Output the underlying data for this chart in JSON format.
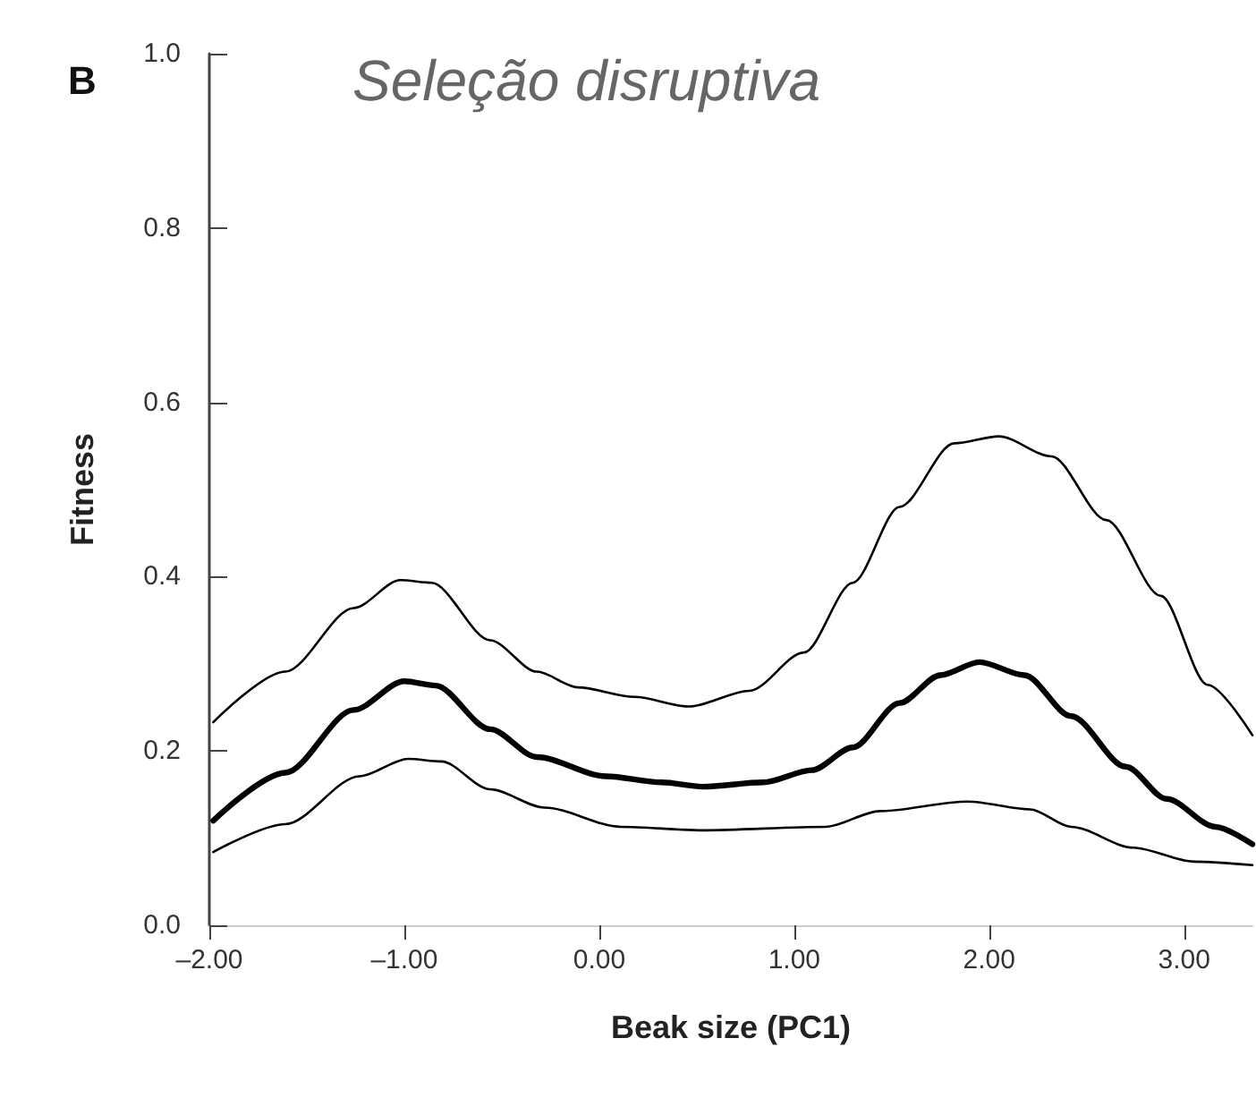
{
  "chart_data": {
    "type": "line",
    "title": "Seleção disruptiva",
    "xlabel": "Beak size (PC1)",
    "ylabel": "Fitness",
    "annotations": [
      "B"
    ],
    "xlim": [
      -2,
      3.35
    ],
    "ylim": [
      0,
      1
    ],
    "xticks": [
      {
        "value": -2,
        "label": "–2.00"
      },
      {
        "value": -1,
        "label": "–1.00"
      },
      {
        "value": 0,
        "label": "0.00"
      },
      {
        "value": 1,
        "label": "1.00"
      },
      {
        "value": 2,
        "label": "2.00"
      },
      {
        "value": 3,
        "label": "3.00"
      }
    ],
    "yticks": [
      {
        "value": 0,
        "label": "0.0"
      },
      {
        "value": 0.2,
        "label": "0.2"
      },
      {
        "value": 0.4,
        "label": "0.4"
      },
      {
        "value": 0.6,
        "label": "0.6"
      },
      {
        "value": 0.8,
        "label": "0.8"
      },
      {
        "value": 1,
        "label": "1.0"
      }
    ],
    "grid": false,
    "marker": "none",
    "line_style": "solid",
    "series": [
      {
        "color": "#000000",
        "x": [
          -1.98,
          -1.61,
          -1.26,
          -1.0,
          -0.84,
          -0.56,
          -0.32,
          0.035,
          0.32,
          0.53,
          0.84,
          1.09,
          1.3,
          1.54,
          1.75,
          1.95,
          2.18,
          2.42,
          2.7,
          2.91,
          3.16,
          3.35
        ],
        "values": [
          0.12,
          0.175,
          0.247,
          0.28,
          0.275,
          0.225,
          0.193,
          0.171,
          0.164,
          0.159,
          0.164,
          0.178,
          0.204,
          0.255,
          0.287,
          0.302,
          0.287,
          0.24,
          0.182,
          0.145,
          0.113,
          0.093
        ]
      },
      {
        "color": "#000000",
        "x": [
          -1.98,
          -1.61,
          -1.26,
          -1.02,
          -0.86,
          -0.56,
          -0.32,
          -0.11,
          0.18,
          0.46,
          0.77,
          1.05,
          1.3,
          1.54,
          1.82,
          2.05,
          2.32,
          2.6,
          2.88,
          3.12,
          3.35
        ],
        "values": [
          0.233,
          0.291,
          0.364,
          0.396,
          0.393,
          0.327,
          0.291,
          0.273,
          0.262,
          0.251,
          0.269,
          0.313,
          0.393,
          0.48,
          0.553,
          0.561,
          0.538,
          0.465,
          0.378,
          0.276,
          0.218
        ]
      },
      {
        "color": "#000000",
        "x": [
          -1.98,
          -1.61,
          -1.23,
          -0.98,
          -0.81,
          -0.56,
          -0.28,
          0.11,
          0.53,
          1.16,
          1.44,
          1.89,
          2.21,
          2.42,
          2.74,
          3.05,
          3.35
        ],
        "values": [
          0.084,
          0.116,
          0.171,
          0.191,
          0.188,
          0.156,
          0.135,
          0.113,
          0.109,
          0.113,
          0.131,
          0.142,
          0.133,
          0.113,
          0.089,
          0.073,
          0.069
        ]
      }
    ]
  }
}
